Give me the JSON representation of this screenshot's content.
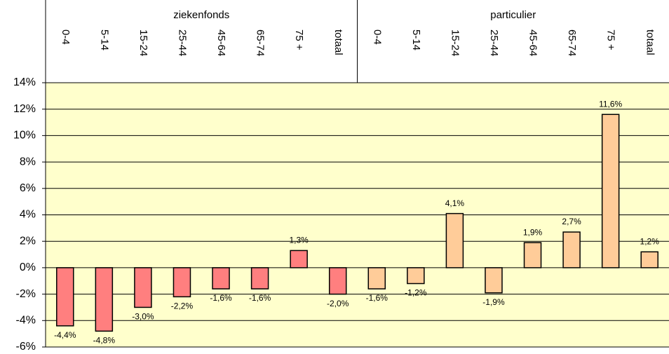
{
  "chart_data": {
    "type": "bar",
    "groups": [
      {
        "name": "ziekenfonds",
        "color": "#ff7f7f",
        "categories": [
          "0-4",
          "5-14",
          "15-24",
          "25-44",
          "45-64",
          "65-74",
          "75 +",
          "totaal"
        ],
        "values": [
          -4.4,
          -4.8,
          -3.0,
          -2.2,
          -1.6,
          -1.6,
          1.3,
          -2.0
        ],
        "value_labels": [
          "-4,4%",
          "-4,8%",
          "-3,0%",
          "-2,2%",
          "-1,6%",
          "-1,6%",
          "1,3%",
          "-2,0%"
        ]
      },
      {
        "name": "particulier",
        "color": "#ffcc99",
        "categories": [
          "0-4",
          "5-14",
          "15-24",
          "25-44",
          "45-64",
          "65-74",
          "75 +",
          "totaal"
        ],
        "values": [
          -1.6,
          -1.2,
          4.1,
          -1.9,
          1.9,
          2.7,
          11.6,
          1.2
        ],
        "value_labels": [
          "-1,6%",
          "-1,2%",
          "4,1%",
          "-1,9%",
          "1,9%",
          "2,7%",
          "11,6%",
          "1,2%"
        ]
      }
    ],
    "ylim": [
      -6,
      14
    ],
    "yticks": [
      {
        "value": -6,
        "label": "-6%"
      },
      {
        "value": -4,
        "label": "-4%"
      },
      {
        "value": -2,
        "label": "-2%"
      },
      {
        "value": 0,
        "label": "0%"
      },
      {
        "value": 2,
        "label": "2%"
      },
      {
        "value": 4,
        "label": "4%"
      },
      {
        "value": 6,
        "label": "6%"
      },
      {
        "value": 8,
        "label": "8%"
      },
      {
        "value": 10,
        "label": "10%"
      },
      {
        "value": 12,
        "label": "12%"
      },
      {
        "value": 14,
        "label": "14%"
      }
    ],
    "grid": true,
    "background": "#ffffcc"
  }
}
